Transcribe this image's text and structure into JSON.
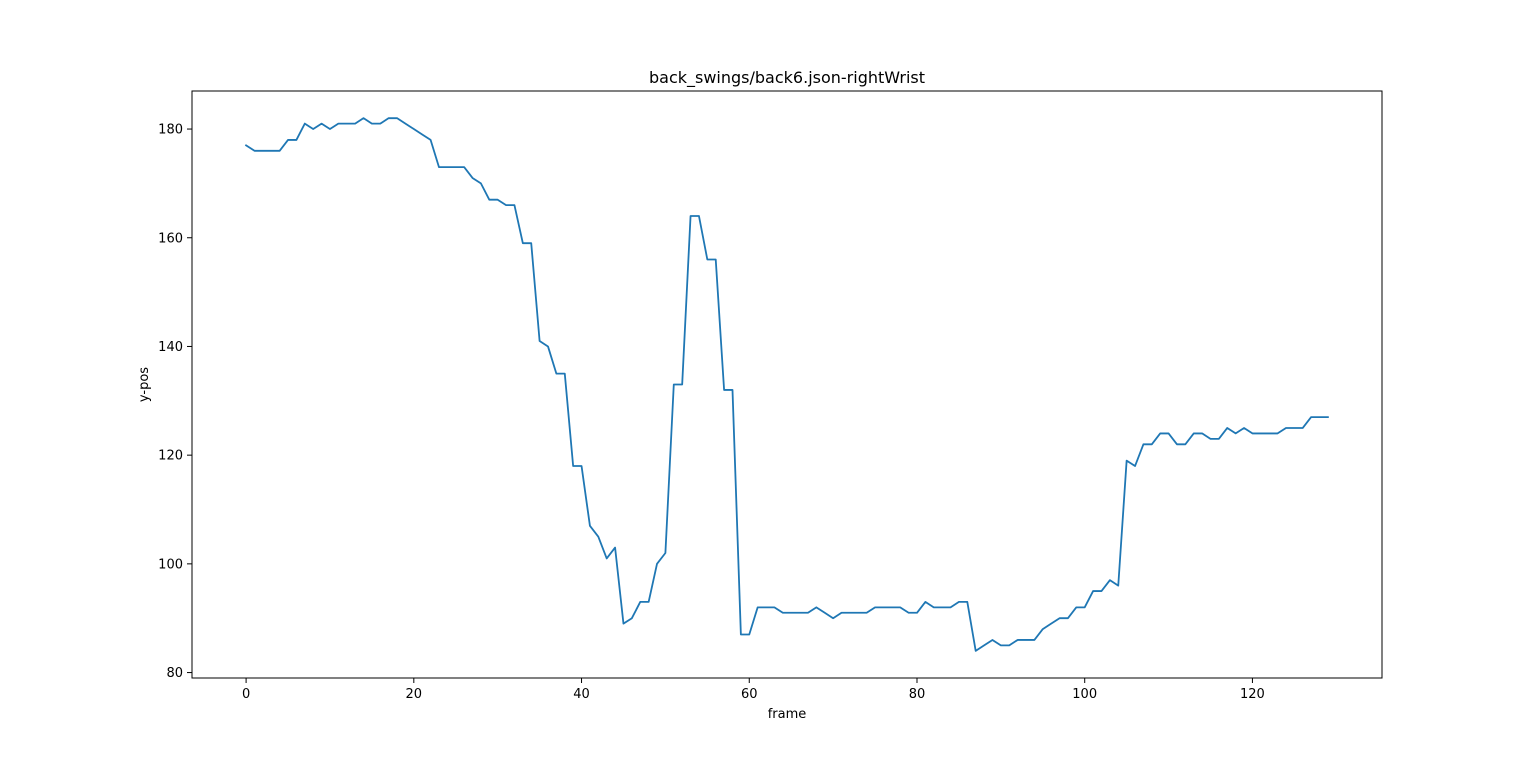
{
  "chart_data": {
    "type": "line",
    "title": "back_swings/back6.json-rightWrist",
    "xlabel": "frame",
    "ylabel": "y-pos",
    "xlim": [
      -6.45,
      135.45
    ],
    "ylim": [
      79,
      187
    ],
    "xticks": [
      0,
      20,
      40,
      60,
      80,
      100,
      120
    ],
    "yticks": [
      80,
      100,
      120,
      140,
      160,
      180
    ],
    "grid": false,
    "line_color": "#1f77b4",
    "series": [
      {
        "values": [
          177,
          176,
          176,
          176,
          176,
          178,
          178,
          181,
          180,
          181,
          180,
          181,
          181,
          181,
          182,
          181,
          181,
          182,
          182,
          181,
          180,
          179,
          178,
          173,
          173,
          173,
          173,
          171,
          170,
          167,
          167,
          166,
          166,
          159,
          159,
          141,
          140,
          135,
          135,
          118,
          118,
          107,
          105,
          101,
          103,
          89,
          90,
          93,
          93,
          100,
          102,
          133,
          133,
          164,
          164,
          156,
          156,
          132,
          132,
          87,
          87,
          92,
          92,
          92,
          91,
          91,
          91,
          91,
          92,
          91,
          90,
          91,
          91,
          91,
          91,
          92,
          92,
          92,
          92,
          91,
          91,
          93,
          92,
          92,
          92,
          93,
          93,
          84,
          85,
          86,
          85,
          85,
          86,
          86,
          86,
          88,
          89,
          90,
          90,
          92,
          92,
          95,
          95,
          97,
          96,
          119,
          118,
          122,
          122,
          124,
          124,
          122,
          122,
          124,
          124,
          123,
          123,
          125,
          124,
          125,
          124,
          124,
          124,
          124,
          125,
          125,
          125,
          127,
          127,
          127
        ]
      }
    ]
  }
}
